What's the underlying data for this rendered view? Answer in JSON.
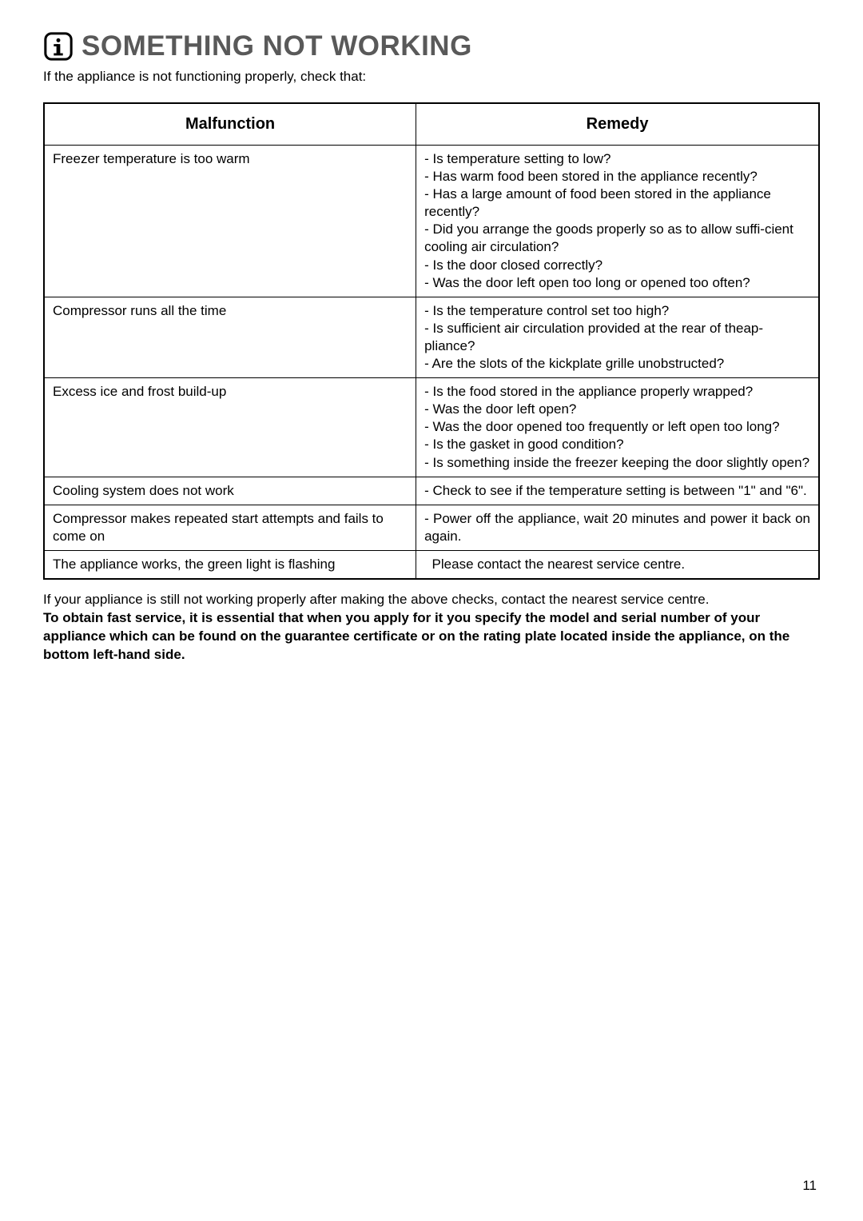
{
  "page": {
    "title": "SOMETHING NOT WORKING",
    "intro": "If the appliance is not functioning properly, check that:",
    "page_number": "11"
  },
  "table": {
    "headers": {
      "malfunction": "Malfunction",
      "remedy": "Remedy"
    },
    "rows": [
      {
        "malfunction": "Freezer temperature is too warm",
        "mal_pad": false,
        "rem_pad": true,
        "rem_justify": false,
        "remedy": "- Is temperature setting to low?\n- Has warm food been stored in the appliance recently?\n- Has a large amount of food been stored in the appliance recently?\n- Did you arrange the goods properly so as to allow suffi-cient cooling air circulation?\n- Is the door closed correctly?\n- Was the door left open too long or opened too often?"
      },
      {
        "malfunction": "Compressor runs all the time",
        "mal_pad": true,
        "rem_pad": true,
        "rem_justify": false,
        "remedy": "- Is the temperature control set too high?\n- Is sufficient air circulation provided at the rear of theap-pliance?\n- Are the slots of the kickplate grille unobstructed?"
      },
      {
        "malfunction": "Excess ice and frost build-up",
        "mal_pad": true,
        "rem_pad": true,
        "rem_justify": false,
        "remedy": "- Is the food stored in the appliance properly wrapped?\n- Was the door left open?\n- Was the door opened too frequently or left open too long?\n- Is the gasket in good condition?\n- Is something inside the freezer keeping the door slightly open?"
      },
      {
        "malfunction": "Cooling system does not work",
        "mal_pad": false,
        "rem_pad": true,
        "rem_justify": false,
        "remedy": "- Check to see if the temperature setting is between \"1\" and \"6\"."
      },
      {
        "malfunction": "Compressor makes repeated start attempts and fails to come on",
        "mal_pad": false,
        "rem_pad": true,
        "rem_justify": true,
        "remedy": "- Power off the appliance, wait 20 minutes and power it back on again."
      },
      {
        "malfunction": "The appliance works, the green light is flashing",
        "mal_pad": false,
        "rem_pad": true,
        "rem_justify": false,
        "remedy": "  Please contact the nearest service centre."
      }
    ]
  },
  "footer": {
    "line1": "If your appliance is still not working properly after making the above checks, contact the nearest service centre.",
    "bold": "To obtain fast service, it is essential that when you apply for it you specify the model and serial number of your appliance which can be found on the guarantee certificate or on the rating plate located inside the appliance, on the bottom left-hand side."
  },
  "styling": {
    "title_color": "#595959",
    "title_fontsize": 35,
    "body_fontsize": 17,
    "header_fontsize": 20,
    "border_color": "#000000",
    "background_color": "#ffffff",
    "icon_stroke": "#000000"
  }
}
